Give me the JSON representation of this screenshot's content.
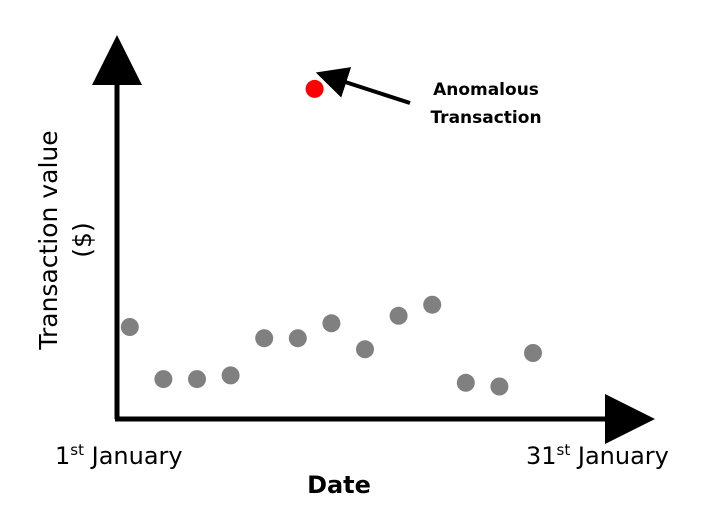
{
  "chart_data": {
    "type": "scatter",
    "title": "",
    "xlabel": "Date",
    "ylabel": [
      "Transaction value",
      "($)"
    ],
    "x_ticks": [
      {
        "day": 1,
        "num": "1",
        "sup": "st",
        "month": " January"
      },
      {
        "day": 31,
        "num": "31",
        "sup": "st",
        "month": " January"
      }
    ],
    "xlim": [
      1,
      31
    ],
    "ylim": [
      0,
      100
    ],
    "grid": false,
    "series": [
      {
        "color": "#808080",
        "points": [
          {
            "x": 2,
            "y": 25
          },
          {
            "x": 4,
            "y": 11
          },
          {
            "x": 6,
            "y": 11
          },
          {
            "x": 8,
            "y": 12
          },
          {
            "x": 10,
            "y": 22
          },
          {
            "x": 12,
            "y": 22
          },
          {
            "x": 14,
            "y": 26
          },
          {
            "x": 16,
            "y": 19
          },
          {
            "x": 18,
            "y": 28
          },
          {
            "x": 20,
            "y": 31
          },
          {
            "x": 22,
            "y": 10
          },
          {
            "x": 24,
            "y": 9
          },
          {
            "x": 26,
            "y": 18
          }
        ]
      },
      {
        "color": "#ff0000",
        "points": [
          {
            "x": 13,
            "y": 89
          }
        ]
      }
    ],
    "annotations": [
      {
        "lines": [
          "Anomalous",
          "Transaction"
        ],
        "target_series": 1,
        "target_point": 0
      }
    ]
  }
}
